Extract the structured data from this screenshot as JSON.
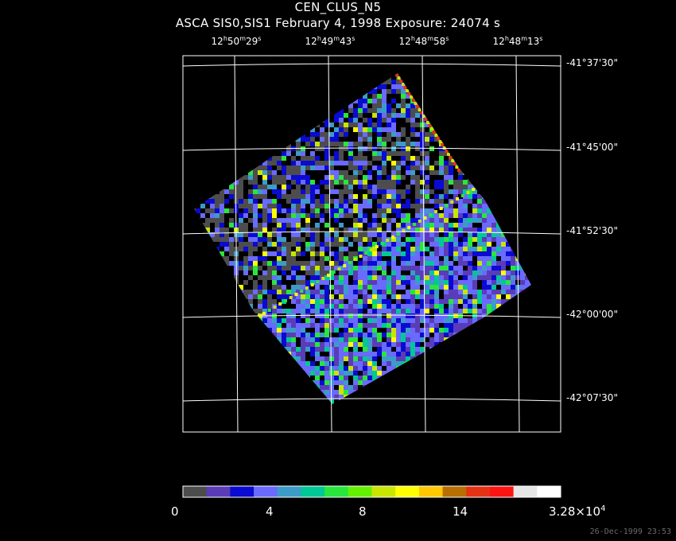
{
  "title": "CEN_CLUS_N5",
  "subtitle": "ASCA SIS0,SIS1 February 4, 1998 Exposure: 24074 s",
  "ra_ticks": [
    {
      "h": "12",
      "m": "50",
      "s": "29"
    },
    {
      "h": "12",
      "m": "49",
      "s": "43"
    },
    {
      "h": "12",
      "m": "48",
      "s": "58"
    },
    {
      "h": "12",
      "m": "48",
      "s": "13"
    }
  ],
  "dec_ticks": [
    {
      "deg": "-41",
      "min": "37",
      "sec": "30"
    },
    {
      "deg": "-41",
      "min": "45",
      "sec": "00"
    },
    {
      "deg": "-41",
      "min": "52",
      "sec": "30"
    },
    {
      "deg": "-42",
      "min": "00",
      "sec": "00"
    },
    {
      "deg": "-42",
      "min": "07",
      "sec": "30"
    }
  ],
  "colorbar": {
    "colors": [
      "#4d4d4d",
      "#5a3cb8",
      "#0a0ad2",
      "#6a6aff",
      "#3c9cc8",
      "#00c896",
      "#28e63c",
      "#64f000",
      "#c8e600",
      "#ffff00",
      "#ffc800",
      "#b86e00",
      "#e63214",
      "#ff1414",
      "#e6e6e6",
      "#ffffff"
    ],
    "labels": [
      {
        "text": "0",
        "base": "0",
        "exp": ""
      },
      {
        "text": "4",
        "base": "4",
        "exp": ""
      },
      {
        "text": "8",
        "base": "8",
        "exp": ""
      },
      {
        "text": "14",
        "base": "14",
        "exp": ""
      },
      {
        "text": "3.28×10",
        "base": "3.28×10",
        "exp": "4"
      }
    ]
  },
  "footer_timestamp": "26-Dec-1999 23:53",
  "colors": {
    "background": "#000000",
    "grid": "#ffffff",
    "text": "#ffffff"
  }
}
